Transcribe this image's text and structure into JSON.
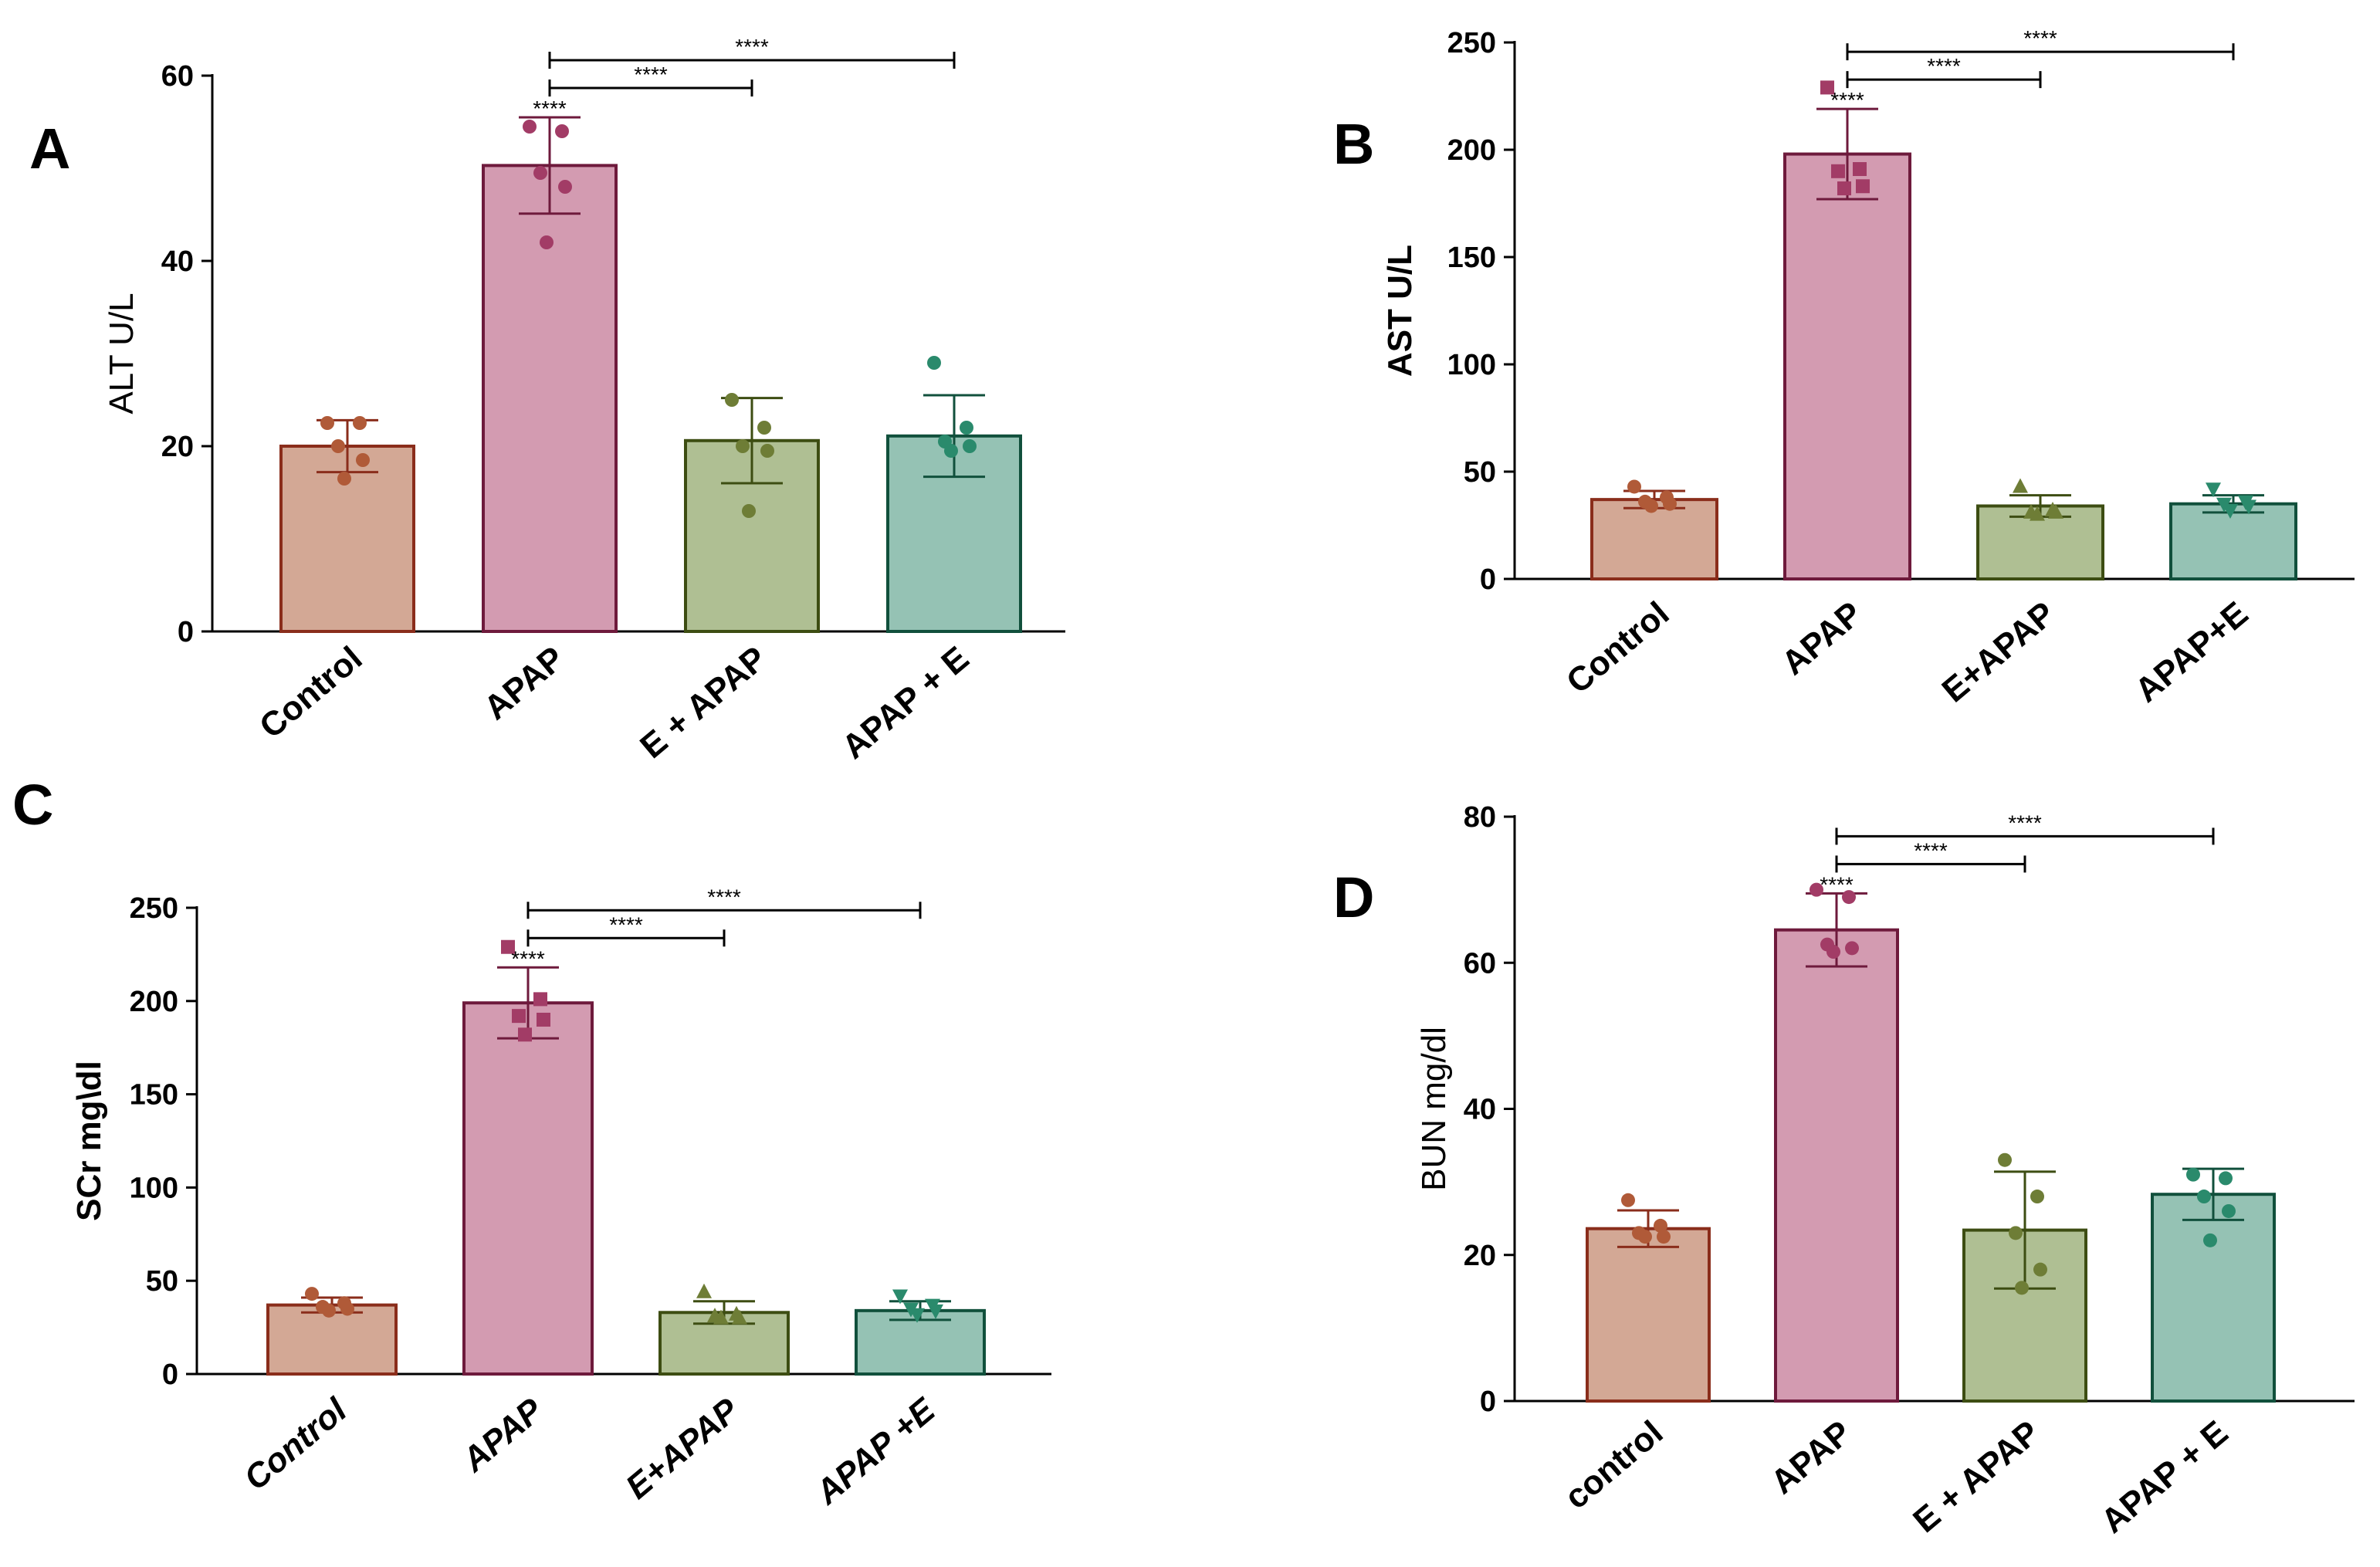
{
  "figure": {
    "panel_count": 4
  },
  "chart_data": [
    {
      "type": "bar",
      "panel_label": "A",
      "ylabel": "ALT U/L",
      "ylim": [
        0,
        60
      ],
      "yticks": [
        0,
        20,
        40,
        60
      ],
      "categories": [
        "Control",
        "APAP",
        "E + APAP",
        "APAP + E"
      ],
      "category_style": "plain",
      "values": [
        20,
        50.3,
        20.6,
        21.1
      ],
      "errors": [
        2.8,
        5.2,
        4.6,
        4.4
      ],
      "points": [
        [
          22.5,
          22.5,
          20,
          18.5,
          16.5
        ],
        [
          54.5,
          54,
          49.5,
          48,
          42
        ],
        [
          25,
          22,
          20,
          19.5,
          13
        ],
        [
          29,
          22,
          20.5,
          20,
          19.5
        ]
      ],
      "point_markers": [
        "circle",
        "circle",
        "circle",
        "circle"
      ],
      "colors": [
        "#D3A895",
        "#D39BB1",
        "#AFBF93",
        "#95C2B4"
      ],
      "edge_colors": [
        "#8A2D1B",
        "#6E1A3C",
        "#3D4D12",
        "#11503C"
      ],
      "point_colors": [
        "#B05A38",
        "#A23C66",
        "#6E7D36",
        "#2A8A6C"
      ],
      "significance": [
        {
          "label": "****",
          "type": "marker",
          "group": 1
        },
        {
          "label": "****",
          "type": "bracket",
          "from": 1,
          "to": 2,
          "level": 1
        },
        {
          "label": "****",
          "type": "bracket",
          "from": 1,
          "to": 3,
          "level": 2
        }
      ]
    },
    {
      "type": "bar",
      "panel_label": "B",
      "ylabel": "AST U/L",
      "ylim": [
        0,
        250
      ],
      "yticks": [
        0,
        50,
        100,
        150,
        200,
        250
      ],
      "categories": [
        "Control",
        "APAP",
        "E+APAP",
        "APAP+E"
      ],
      "category_style": "plain",
      "values": [
        37,
        198,
        34,
        35
      ],
      "errors": [
        4,
        21,
        5,
        4
      ],
      "points": [
        [
          43,
          38,
          36,
          35,
          34
        ],
        [
          229,
          191,
          190,
          183,
          182
        ],
        [
          43,
          32,
          31,
          31,
          30
        ],
        [
          42,
          36,
          35,
          34,
          32
        ]
      ],
      "point_markers": [
        "circle",
        "square",
        "triangle",
        "triangle-down"
      ],
      "colors": [
        "#D3A895",
        "#D39BB1",
        "#AFBF93",
        "#95C2B4"
      ],
      "edge_colors": [
        "#8A2D1B",
        "#6E1A3C",
        "#3D4D12",
        "#11503C"
      ],
      "point_colors": [
        "#B05A38",
        "#A23C66",
        "#6E7D36",
        "#2A8A6C"
      ],
      "significance": [
        {
          "label": "****",
          "type": "marker",
          "group": 1
        },
        {
          "label": "****",
          "type": "bracket",
          "from": 1,
          "to": 2,
          "level": 1
        },
        {
          "label": "****",
          "type": "bracket",
          "from": 1,
          "to": 3,
          "level": 2
        }
      ]
    },
    {
      "type": "bar",
      "panel_label": "C",
      "ylabel": "SCr mg\\dl",
      "ylim": [
        0,
        250
      ],
      "yticks": [
        0,
        50,
        100,
        150,
        200,
        250
      ],
      "categories": [
        "Control",
        "APAP",
        "E+APAP",
        "APAP +E"
      ],
      "category_style": "italic",
      "values": [
        37,
        199,
        33,
        34
      ],
      "errors": [
        4,
        19,
        6,
        5
      ],
      "points": [
        [
          43,
          38,
          36,
          35,
          34
        ],
        [
          229,
          201,
          192,
          190,
          182
        ],
        [
          44,
          32,
          31,
          30,
          30
        ],
        [
          42,
          37,
          35,
          34,
          32
        ]
      ],
      "point_markers": [
        "circle",
        "square",
        "triangle",
        "triangle-down"
      ],
      "colors": [
        "#D3A895",
        "#D39BB1",
        "#AFBF93",
        "#95C2B4"
      ],
      "edge_colors": [
        "#8A2D1B",
        "#6E1A3C",
        "#3D4D12",
        "#11503C"
      ],
      "point_colors": [
        "#B05A38",
        "#A23C66",
        "#6E7D36",
        "#2A8A6C"
      ],
      "significance": [
        {
          "label": "****",
          "type": "marker",
          "group": 1
        },
        {
          "label": "****",
          "type": "bracket",
          "from": 1,
          "to": 2,
          "level": 1
        },
        {
          "label": "****",
          "type": "bracket",
          "from": 1,
          "to": 3,
          "level": 2
        }
      ]
    },
    {
      "type": "bar",
      "panel_label": "D",
      "ylabel": "BUN mg/dl",
      "ylim": [
        0,
        80
      ],
      "yticks": [
        0,
        20,
        40,
        60,
        80
      ],
      "categories": [
        "control",
        "APAP",
        "E + APAP",
        "APAP + E"
      ],
      "category_style": "plain",
      "values": [
        23.6,
        64.5,
        23.4,
        28.3
      ],
      "errors": [
        2.5,
        5,
        8,
        3.5
      ],
      "points": [
        [
          27.5,
          24,
          23,
          22.5,
          22.5
        ],
        [
          70,
          69,
          62.5,
          62,
          61.5
        ],
        [
          33,
          28,
          23,
          18,
          15.5
        ],
        [
          31,
          30.5,
          28,
          26,
          22
        ]
      ],
      "point_markers": [
        "circle",
        "circle",
        "circle",
        "circle"
      ],
      "colors": [
        "#D3A895",
        "#D39BB1",
        "#AFBF93",
        "#95C2B4"
      ],
      "edge_colors": [
        "#8A2D1B",
        "#6E1A3C",
        "#3D4D12",
        "#11503C"
      ],
      "point_colors": [
        "#B05A38",
        "#A23C66",
        "#6E7D36",
        "#2A8A6C"
      ],
      "significance": [
        {
          "label": "****",
          "type": "marker",
          "group": 1
        },
        {
          "label": "****",
          "type": "bracket",
          "from": 1,
          "to": 2,
          "level": 1
        },
        {
          "label": "****",
          "type": "bracket",
          "from": 1,
          "to": 3,
          "level": 2
        }
      ]
    }
  ]
}
